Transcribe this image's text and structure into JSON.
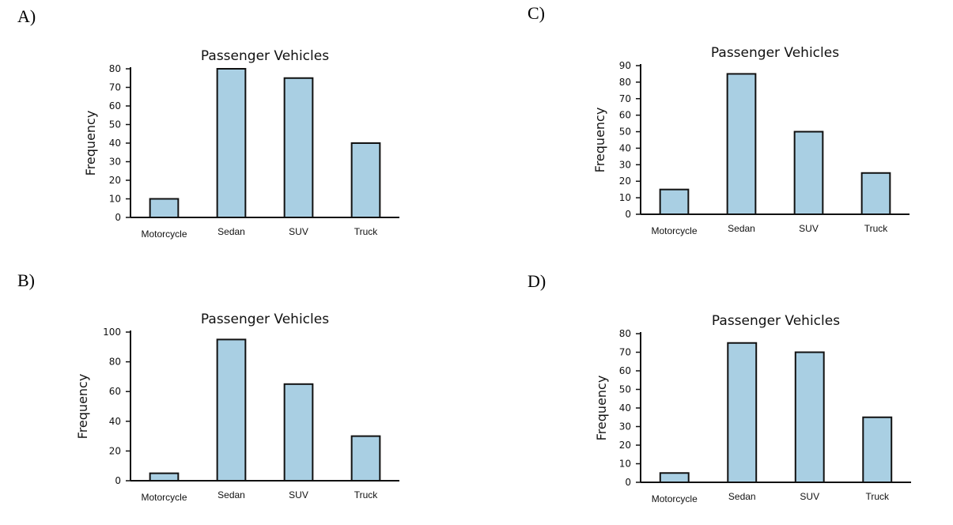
{
  "options": [
    {
      "letter": "A)"
    },
    {
      "letter": "B)"
    },
    {
      "letter": "C)"
    },
    {
      "letter": "D)"
    }
  ],
  "chart_data": [
    {
      "option": "A",
      "type": "bar",
      "title": "Passenger Vehicles",
      "xlabel": "",
      "ylabel": "Frequency",
      "categories": [
        "Motorcycle",
        "Sedan",
        "SUV",
        "Truck"
      ],
      "values": [
        10,
        80,
        75,
        40
      ],
      "ylim": [
        0,
        80
      ],
      "yticks": [
        0,
        10,
        20,
        30,
        40,
        50,
        60,
        70,
        80
      ],
      "grid": false,
      "bar_color": "#a9cfe3"
    },
    {
      "option": "B",
      "type": "bar",
      "title": "Passenger Vehicles",
      "xlabel": "",
      "ylabel": "Frequency",
      "categories": [
        "Motorcycle",
        "Sedan",
        "SUV",
        "Truck"
      ],
      "values": [
        5,
        95,
        65,
        30
      ],
      "ylim": [
        0,
        100
      ],
      "yticks": [
        0,
        20,
        40,
        60,
        80,
        100
      ],
      "grid": false,
      "bar_color": "#a9cfe3"
    },
    {
      "option": "C",
      "type": "bar",
      "title": "Passenger Vehicles",
      "xlabel": "",
      "ylabel": "Frequency",
      "categories": [
        "Motorcycle",
        "Sedan",
        "SUV",
        "Truck"
      ],
      "values": [
        15,
        85,
        50,
        25
      ],
      "ylim": [
        0,
        90
      ],
      "yticks": [
        0,
        10,
        20,
        30,
        40,
        50,
        60,
        70,
        80,
        90
      ],
      "grid": false,
      "bar_color": "#a9cfe3"
    },
    {
      "option": "D",
      "type": "bar",
      "title": "Passenger Vehicles",
      "xlabel": "",
      "ylabel": "Frequency",
      "categories": [
        "Motorcycle",
        "Sedan",
        "SUV",
        "Truck"
      ],
      "values": [
        5,
        75,
        70,
        35
      ],
      "ylim": [
        0,
        80
      ],
      "yticks": [
        0,
        10,
        20,
        30,
        40,
        50,
        60,
        70,
        80
      ],
      "grid": false,
      "bar_color": "#a9cfe3"
    }
  ]
}
